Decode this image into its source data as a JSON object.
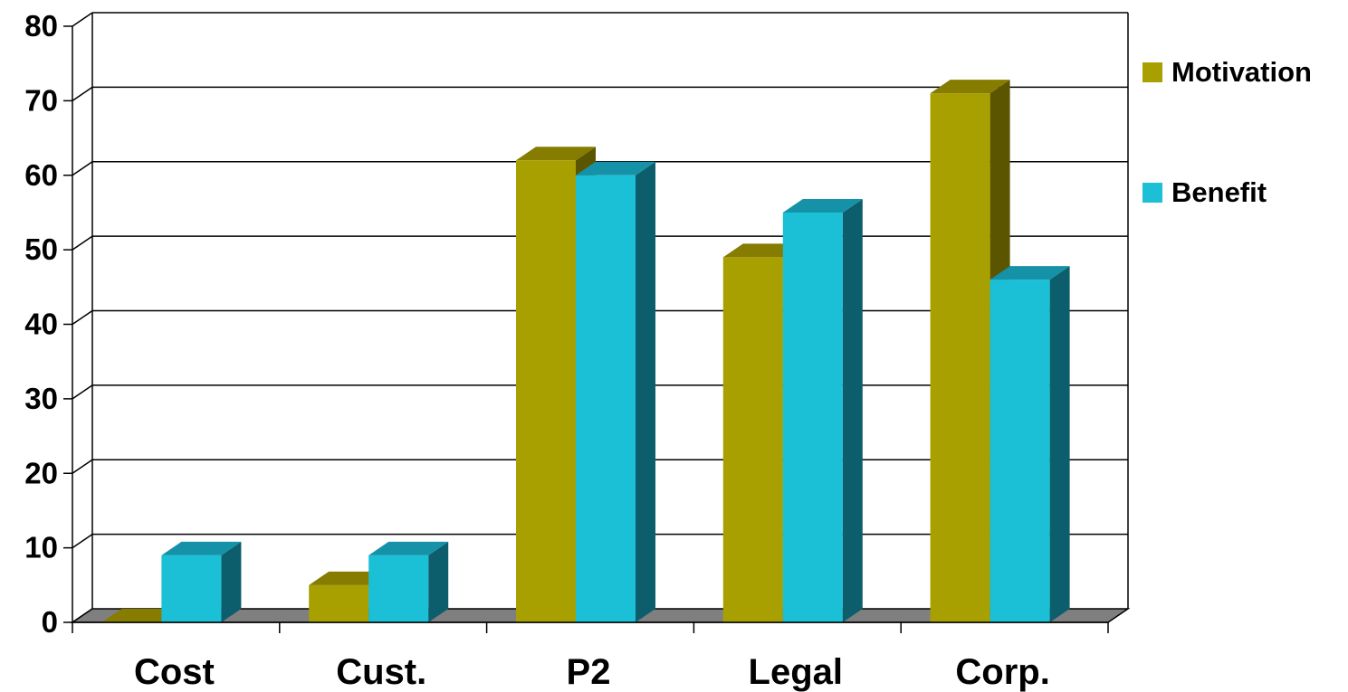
{
  "chart_data": {
    "type": "bar",
    "categories": [
      "Cost",
      "Cust.",
      "P2",
      "Legal",
      "Corp."
    ],
    "series": [
      {
        "name": "Motivation",
        "values": [
          0,
          5,
          62,
          49,
          71
        ],
        "color": "#A8A000",
        "top_color": "#857C00",
        "side_color": "#5C5500"
      },
      {
        "name": "Benefit",
        "values": [
          9,
          9,
          60,
          55,
          46
        ],
        "color": "#1BBFD6",
        "top_color": "#1592A8",
        "side_color": "#0D5E6C"
      }
    ],
    "ylim": [
      0,
      80
    ],
    "yticks": [
      0,
      10,
      20,
      30,
      40,
      50,
      60,
      70,
      80
    ],
    "grid": true,
    "legend_position": "right",
    "style": "3d-clustered-column",
    "floor_color": "#7F7F7F"
  }
}
